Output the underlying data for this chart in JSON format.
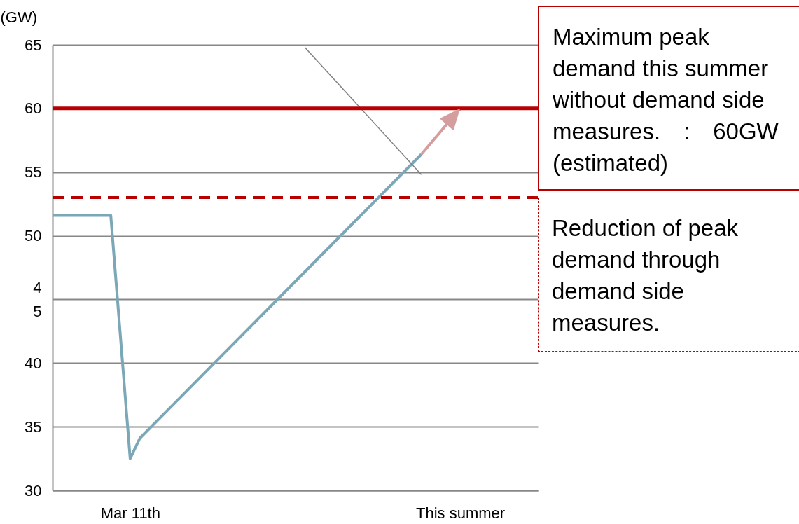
{
  "chart_data": {
    "type": "line",
    "ylabel": "(GW)",
    "categories": [
      null,
      null,
      null,
      null,
      null,
      null,
      null,
      null,
      "Mar 11th",
      null,
      null,
      null,
      null,
      null,
      null,
      null,
      null,
      null,
      null,
      null,
      null,
      null,
      null,
      null,
      null,
      null,
      null,
      null,
      null,
      null,
      null,
      null,
      null,
      null,
      null,
      null,
      null,
      null,
      null,
      null,
      null,
      null,
      "This summer",
      null,
      null,
      null,
      null,
      null,
      null,
      null,
      null
    ],
    "ylim": [
      30,
      65
    ],
    "yticks": [
      30,
      35,
      40,
      {
        "value": 45,
        "label": "4\n5"
      },
      50,
      55,
      60,
      65
    ],
    "series": [
      {
        "color": "#7ba7b7",
        "values": [
          51.6,
          null,
          null,
          null,
          null,
          null,
          51.6,
          null,
          32.5,
          34.1,
          null,
          null,
          null,
          null,
          null,
          null,
          null,
          null,
          null,
          null,
          null,
          null,
          null,
          null,
          null,
          null,
          null,
          null,
          null,
          null,
          null,
          null,
          null,
          null,
          null,
          null,
          null,
          null,
          56.4,
          null,
          null,
          null,
          null,
          null,
          null,
          null,
          null,
          null,
          null,
          null,
          null
        ]
      },
      {
        "color": "#d49e9e",
        "values": [
          null,
          null,
          null,
          null,
          null,
          null,
          null,
          null,
          null,
          null,
          null,
          null,
          null,
          null,
          null,
          null,
          null,
          null,
          null,
          null,
          null,
          null,
          null,
          null,
          null,
          null,
          null,
          null,
          null,
          null,
          null,
          null,
          null,
          null,
          null,
          null,
          null,
          null,
          56.4,
          null,
          null,
          null,
          60,
          null,
          null,
          null,
          null,
          null,
          null,
          null,
          null
        ]
      },
      {
        "color": "#808080",
        "values": [
          null,
          null,
          null,
          null,
          null,
          null,
          null,
          null,
          null,
          null,
          null,
          null,
          null,
          null,
          null,
          null,
          null,
          null,
          null,
          null,
          null,
          null,
          null,
          null,
          null,
          null,
          64.8,
          null,
          null,
          null,
          null,
          null,
          null,
          null,
          null,
          null,
          null,
          null,
          54.8,
          null,
          null,
          null,
          null,
          null,
          null,
          null,
          null,
          null,
          null,
          null,
          null
        ]
      }
    ],
    "ref_lines": [
      {
        "axis": "y",
        "value": 60,
        "label": "Maximum peak demand this summer without demand side measures.　:　60GW (estimated)",
        "color": "#b80000",
        "line_style": "solid"
      },
      {
        "axis": "y",
        "value": 53,
        "label": "Reduction of peak demand through demand side measures.",
        "color": "#b80000",
        "line_style": "dashed"
      }
    ],
    "grid": "y",
    "marker": "none",
    "line_style": "solid"
  }
}
